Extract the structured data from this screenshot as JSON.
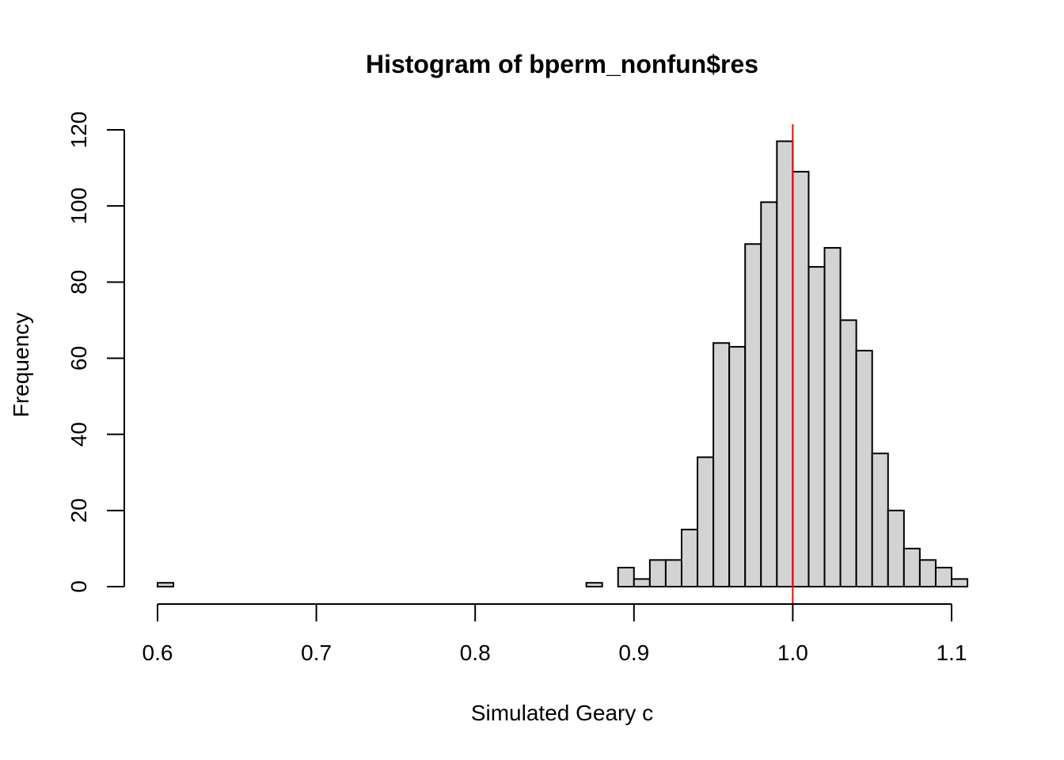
{
  "chart_data": {
    "type": "bar",
    "title": "Histogram of bperm_nonfun$res",
    "xlabel": "Simulated Geary c",
    "ylabel": "Frequency",
    "xlim": [
      0.6,
      1.11
    ],
    "ylim": [
      0,
      120
    ],
    "x_ticks": [
      "0.6",
      "0.7",
      "0.8",
      "0.9",
      "1.0",
      "1.1"
    ],
    "x_tick_values": [
      0.6,
      0.7,
      0.8,
      0.9,
      1.0,
      1.1
    ],
    "y_ticks": [
      "0",
      "20",
      "40",
      "60",
      "80",
      "100",
      "120"
    ],
    "y_tick_values": [
      0,
      20,
      40,
      60,
      80,
      100,
      120
    ],
    "bin_width": 0.01,
    "bin_start": 0.6,
    "counts": [
      1,
      0,
      0,
      0,
      0,
      0,
      0,
      0,
      0,
      0,
      0,
      0,
      0,
      0,
      0,
      0,
      0,
      0,
      0,
      0,
      0,
      0,
      0,
      0,
      0,
      0,
      0,
      1,
      0,
      5,
      2,
      7,
      7,
      15,
      34,
      64,
      63,
      90,
      101,
      117,
      109,
      84,
      89,
      70,
      62,
      35,
      20,
      10,
      7,
      5,
      2
    ],
    "bar_fill": "#d3d3d3",
    "bar_stroke": "#000000",
    "reference_line": {
      "x": 1.0,
      "color": "#ff0000"
    }
  }
}
